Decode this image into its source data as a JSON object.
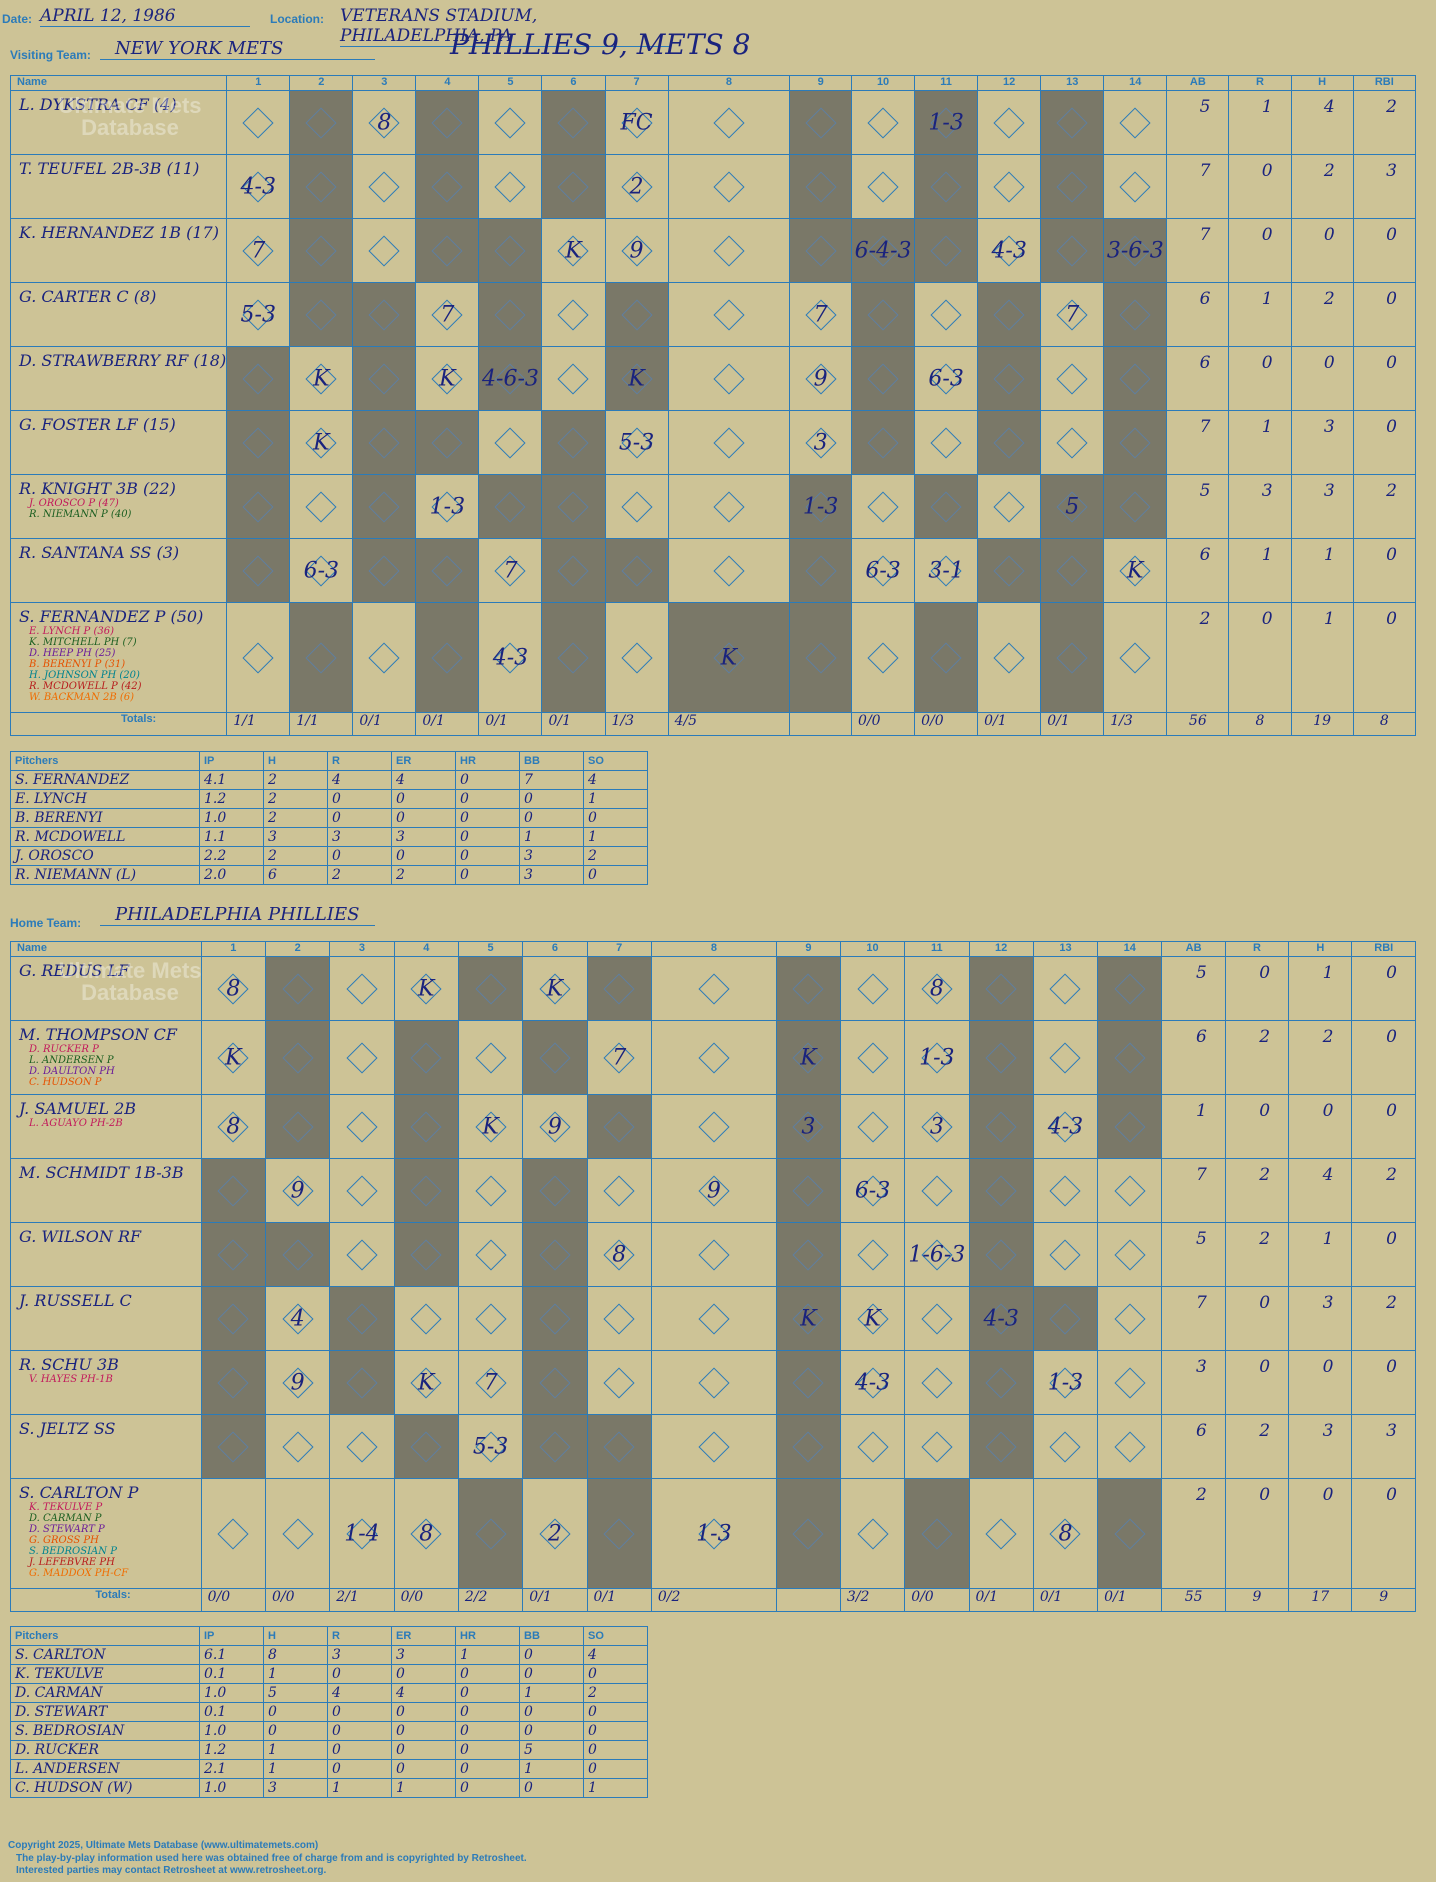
{
  "header": {
    "date_label": "Date:",
    "date": "APRIL 12, 1986",
    "location_label": "Location:",
    "location": "VETERANS STADIUM, PHILADELPHIA, PA",
    "visiting_label": "Visiting Team:",
    "visiting_team": "NEW YORK METS",
    "score_title": "PHILLIES 9, METS 8",
    "home_label": "Home Team:",
    "home_team": "PHILADELPHIA PHILLIES"
  },
  "columns": {
    "name": "Name",
    "innings": [
      "1",
      "2",
      "3",
      "4",
      "5",
      "6",
      "7",
      "8",
      "9",
      "10",
      "11",
      "12",
      "13",
      "14"
    ],
    "stats": [
      "AB",
      "R",
      "H",
      "RBI"
    ]
  },
  "visitors": {
    "rows": [
      {
        "name": "L. DYKSTRA CF (4)",
        "subs": [],
        "ab": "5",
        "r": "1",
        "h": "4",
        "rbi": "2"
      },
      {
        "name": "T. TEUFEL 2B-3B (11)",
        "subs": [],
        "ab": "7",
        "r": "0",
        "h": "2",
        "rbi": "3"
      },
      {
        "name": "K. HERNANDEZ 1B (17)",
        "subs": [],
        "ab": "7",
        "r": "0",
        "h": "0",
        "rbi": "0"
      },
      {
        "name": "G. CARTER C (8)",
        "subs": [],
        "ab": "6",
        "r": "1",
        "h": "2",
        "rbi": "0"
      },
      {
        "name": "D. STRAWBERRY RF (18)",
        "subs": [],
        "ab": "6",
        "r": "0",
        "h": "0",
        "rbi": "0"
      },
      {
        "name": "G. FOSTER LF (15)",
        "subs": [],
        "ab": "7",
        "r": "1",
        "h": "3",
        "rbi": "0"
      },
      {
        "name": "R. KNIGHT 3B (22)",
        "subs": [
          "J. OROSCO P (47)",
          "R. NIEMANN P (40)"
        ],
        "ab": "5",
        "r": "3",
        "h": "3",
        "rbi": "2"
      },
      {
        "name": "R. SANTANA SS (3)",
        "subs": [],
        "ab": "6",
        "r": "1",
        "h": "1",
        "rbi": "0"
      },
      {
        "name": "S. FERNANDEZ P (50)",
        "subs": [
          "E. LYNCH P (36)",
          "K. MITCHELL PH (7)",
          "D. HEEP PH (25)",
          "B. BERENYI P (31)",
          "H. JOHNSON PH (20)",
          "R. MCDOWELL P (42)",
          "W. BACKMAN 2B (6)"
        ],
        "ab": "2",
        "r": "0",
        "h": "1",
        "rbi": "0"
      }
    ],
    "plays": [
      [
        "",
        "",
        "8",
        "",
        "",
        "",
        "FC",
        "",
        "",
        "",
        "1-3",
        "",
        "",
        ""
      ],
      [
        "4-3",
        "",
        "",
        "",
        "",
        "",
        "2",
        "",
        "",
        "",
        "",
        "",
        "",
        ""
      ],
      [
        "7",
        "",
        "",
        "",
        "",
        "K",
        "9",
        "",
        "",
        "6-4-3",
        "",
        "4-3",
        "",
        "3-6-3"
      ],
      [
        "5-3",
        "",
        "",
        "7",
        "",
        "",
        "",
        "",
        "7",
        "",
        "",
        "",
        "7",
        ""
      ],
      [
        "",
        "K",
        "",
        "K",
        "4-6-3",
        "",
        "K",
        "",
        "9",
        "",
        "6-3",
        "",
        "",
        ""
      ],
      [
        "",
        "K",
        "",
        "",
        "",
        "",
        "5-3",
        "",
        "3",
        "",
        "",
        "",
        "",
        ""
      ],
      [
        "",
        "",
        "",
        "1-3",
        "",
        "",
        "",
        "",
        "1-3",
        "",
        "",
        "",
        "5",
        ""
      ],
      [
        "",
        "6-3",
        "",
        "",
        "7",
        "",
        "",
        "",
        "",
        "6-3",
        "3-1",
        "",
        "",
        "K"
      ],
      [
        "",
        "",
        "",
        "",
        "4-3",
        "",
        "",
        "K",
        "",
        "",
        "",
        "",
        "",
        ""
      ]
    ],
    "totals_label": "Totals:",
    "totals_rh": [
      "1/1",
      "1/1",
      "0/1",
      "0/1",
      "0/1",
      "0/1",
      "1/3",
      "4/5",
      "",
      "0/0",
      "0/0",
      "0/1",
      "0/1",
      "1/3"
    ],
    "totals": {
      "ab": "56",
      "r": "8",
      "h": "19",
      "rbi": "8"
    }
  },
  "visitor_pitchers": {
    "headers": [
      "Pitchers",
      "IP",
      "H",
      "R",
      "ER",
      "HR",
      "BB",
      "SO"
    ],
    "rows": [
      [
        "S. FERNANDEZ",
        "4.1",
        "2",
        "4",
        "4",
        "0",
        "7",
        "4"
      ],
      [
        "E. LYNCH",
        "1.2",
        "2",
        "0",
        "0",
        "0",
        "0",
        "1"
      ],
      [
        "B. BERENYI",
        "1.0",
        "2",
        "0",
        "0",
        "0",
        "0",
        "0"
      ],
      [
        "R. MCDOWELL",
        "1.1",
        "3",
        "3",
        "3",
        "0",
        "1",
        "1"
      ],
      [
        "J. OROSCO",
        "2.2",
        "2",
        "0",
        "0",
        "0",
        "3",
        "2"
      ],
      [
        "R. NIEMANN (L)",
        "2.0",
        "6",
        "2",
        "2",
        "0",
        "3",
        "0"
      ]
    ]
  },
  "home": {
    "rows": [
      {
        "name": "G. REDUS LF",
        "subs": [],
        "ab": "5",
        "r": "0",
        "h": "1",
        "rbi": "0"
      },
      {
        "name": "M. THOMPSON CF",
        "subs": [
          "D. RUCKER P",
          "L. ANDERSEN P",
          "D. DAULTON PH",
          "C. HUDSON P"
        ],
        "ab": "6",
        "r": "2",
        "h": "2",
        "rbi": "0"
      },
      {
        "name": "J. SAMUEL 2B",
        "subs": [
          "L. AGUAYO PH-2B"
        ],
        "ab": "1",
        "r": "0",
        "h": "0",
        "rbi": "0"
      },
      {
        "name": "M. SCHMIDT 1B-3B",
        "subs": [],
        "ab": "7",
        "r": "2",
        "h": "4",
        "rbi": "2"
      },
      {
        "name": "G. WILSON RF",
        "subs": [],
        "ab": "5",
        "r": "2",
        "h": "1",
        "rbi": "0"
      },
      {
        "name": "J. RUSSELL C",
        "subs": [],
        "ab": "7",
        "r": "0",
        "h": "3",
        "rbi": "2"
      },
      {
        "name": "R. SCHU 3B",
        "subs": [
          "V. HAYES PH-1B"
        ],
        "ab": "3",
        "r": "0",
        "h": "0",
        "rbi": "0"
      },
      {
        "name": "S. JELTZ SS",
        "subs": [],
        "ab": "6",
        "r": "2",
        "h": "3",
        "rbi": "3"
      },
      {
        "name": "S. CARLTON P",
        "subs": [
          "K. TEKULVE P",
          "D. CARMAN P",
          "D. STEWART P",
          "G. GROSS PH",
          "S. BEDROSIAN P",
          "J. LEFEBVRE PH",
          "G. MADDOX PH-CF"
        ],
        "ab": "2",
        "r": "0",
        "h": "0",
        "rbi": "0"
      }
    ],
    "plays": [
      [
        "8",
        "",
        "",
        "K",
        "",
        "K",
        "",
        "",
        "",
        "",
        "8",
        "",
        "",
        ""
      ],
      [
        "K",
        "",
        "",
        "",
        "",
        "",
        "7",
        "",
        "K",
        "",
        "1-3",
        "",
        "",
        ""
      ],
      [
        "8",
        "",
        "",
        "",
        "K",
        "9",
        "",
        "",
        "3",
        "",
        "3",
        "",
        "4-3",
        ""
      ],
      [
        "",
        "9",
        "",
        "",
        "",
        "",
        "",
        "9",
        "",
        "6-3",
        "",
        "",
        "",
        ""
      ],
      [
        "",
        "",
        "",
        "",
        "",
        "",
        "8",
        "",
        "",
        "",
        "1-6-3",
        "",
        "",
        ""
      ],
      [
        "",
        "4",
        "",
        "",
        "",
        "",
        "",
        "",
        "K",
        "K",
        "",
        "4-3",
        "",
        ""
      ],
      [
        "",
        "9",
        "",
        "K",
        "7",
        "",
        "",
        "",
        "",
        "4-3",
        "",
        "",
        "1-3",
        ""
      ],
      [
        "",
        "",
        "",
        "",
        "5-3",
        "",
        "",
        "",
        "",
        "",
        "",
        "",
        "",
        ""
      ],
      [
        "",
        "",
        "1-4",
        "8",
        "",
        "2",
        "",
        "1-3",
        "",
        "",
        "",
        "",
        "8",
        ""
      ]
    ],
    "totals_label": "Totals:",
    "totals_rh": [
      "0/0",
      "0/0",
      "2/1",
      "0/0",
      "2/2",
      "0/1",
      "0/1",
      "0/2",
      "",
      "3/2",
      "0/0",
      "0/1",
      "0/1",
      "0/1"
    ],
    "totals": {
      "ab": "55",
      "r": "9",
      "h": "17",
      "rbi": "9"
    }
  },
  "home_pitchers": {
    "headers": [
      "Pitchers",
      "IP",
      "H",
      "R",
      "ER",
      "HR",
      "BB",
      "SO"
    ],
    "rows": [
      [
        "S. CARLTON",
        "6.1",
        "8",
        "3",
        "3",
        "1",
        "0",
        "4"
      ],
      [
        "K. TEKULVE",
        "0.1",
        "1",
        "0",
        "0",
        "0",
        "0",
        "0"
      ],
      [
        "D. CARMAN",
        "1.0",
        "5",
        "4",
        "4",
        "0",
        "1",
        "2"
      ],
      [
        "D. STEWART",
        "0.1",
        "0",
        "0",
        "0",
        "0",
        "0",
        "0"
      ],
      [
        "S. BEDROSIAN",
        "1.0",
        "0",
        "0",
        "0",
        "0",
        "0",
        "0"
      ],
      [
        "D. RUCKER",
        "1.2",
        "1",
        "0",
        "0",
        "0",
        "5",
        "0"
      ],
      [
        "L. ANDERSEN",
        "2.1",
        "1",
        "0",
        "0",
        "0",
        "1",
        "0"
      ],
      [
        "C. HUDSON (W)",
        "1.0",
        "3",
        "1",
        "1",
        "0",
        "0",
        "1"
      ]
    ]
  },
  "watermark": "Ultimate Mets Database",
  "footer": {
    "line1": "Copyright 2025, Ultimate Mets Database (www.ultimatemets.com)",
    "line2": "The play-by-play information used here was obtained free of charge from and is copyrighted by Retrosheet.",
    "line3": "Interested parties may contact Retrosheet at www.retrosheet.org."
  }
}
